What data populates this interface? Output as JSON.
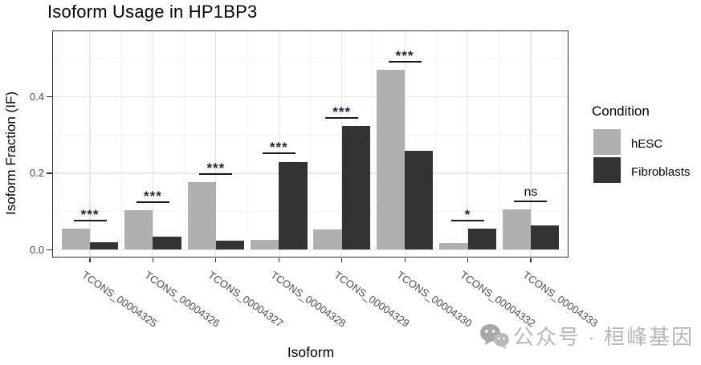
{
  "chart_data": {
    "type": "bar",
    "title": "Isoform Usage in HP1BP3",
    "xlabel": "Isoform",
    "ylabel": "Isoform Fraction (IF)",
    "legend_title": "Condition",
    "legend_position": "right",
    "grid": true,
    "panel_style": "white background, light gray major/minor gridlines, dark panel border",
    "categories": [
      "TCONS_00004325",
      "TCONS_00004326",
      "TCONS_00004327",
      "TCONS_00004328",
      "TCONS_00004329",
      "TCONS_00004330",
      "TCONS_00004332",
      "TCONS_00004333"
    ],
    "series": [
      {
        "name": "hESC",
        "color": "#b0b0b0",
        "values": [
          0.054,
          0.103,
          0.176,
          0.025,
          0.053,
          0.47,
          0.017,
          0.105
        ]
      },
      {
        "name": "Fibroblasts",
        "color": "#333333",
        "values": [
          0.02,
          0.033,
          0.024,
          0.23,
          0.323,
          0.258,
          0.055,
          0.064
        ]
      }
    ],
    "significance": [
      "***",
      "***",
      "***",
      "***",
      "***",
      "***",
      "*",
      "ns"
    ],
    "y_ticks": [
      "0.0",
      "0.2",
      "0.4"
    ],
    "y_tick_values": [
      0,
      0.2,
      0.4
    ],
    "ylim": [
      0,
      0.574
    ],
    "bar_colors": {
      "accent_light": "#b0b0b0",
      "accent_dark": "#333333"
    },
    "sig_color": "#1a1a1a"
  },
  "watermark": {
    "icon": "wechat-icon",
    "text": "公众号 · 桓峰基因"
  }
}
